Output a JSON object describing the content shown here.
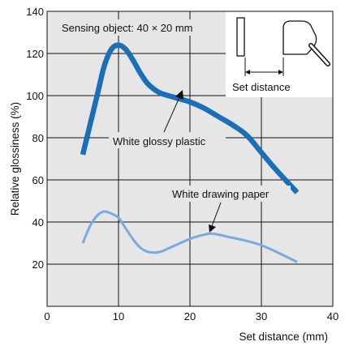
{
  "chart_data": {
    "type": "line",
    "title": "",
    "xlabel": "Set distance (mm)",
    "ylabel": "Relative glossiness (%)",
    "xlim": [
      0,
      40
    ],
    "ylim": [
      0,
      140
    ],
    "x_ticks": [
      0,
      10,
      20,
      30,
      40
    ],
    "y_ticks": [
      20,
      40,
      60,
      80,
      100,
      120,
      140
    ],
    "grid": true,
    "background": "#e6e6e6",
    "series": [
      {
        "name": "White glossy plastic",
        "color": "#1a6fb8",
        "x": [
          5,
          7,
          8,
          9,
          10,
          11,
          12,
          13,
          14,
          15,
          16,
          18,
          20,
          22,
          24,
          26,
          28,
          30,
          32,
          35
        ],
        "y": [
          72,
          100,
          114,
          122,
          124,
          122,
          117,
          111,
          106,
          103,
          101,
          99,
          97,
          94,
          90,
          86,
          81,
          73,
          65,
          54
        ]
      },
      {
        "name": "White drawing paper",
        "color": "#7aa9dd",
        "x": [
          5,
          6,
          7,
          8,
          9,
          10,
          11,
          12,
          13,
          14,
          15,
          16,
          17,
          18,
          20,
          22,
          23,
          24,
          26,
          28,
          30,
          32,
          35
        ],
        "y": [
          30,
          38,
          43,
          45,
          44,
          42,
          37,
          32,
          28,
          26,
          25.5,
          26,
          27.5,
          29,
          32,
          34,
          34.5,
          34,
          32.5,
          31,
          29,
          26,
          21
        ]
      }
    ],
    "annotations": [
      {
        "text": "Sensing object: 40 × 20 mm"
      },
      {
        "text": "Set distance"
      }
    ]
  }
}
